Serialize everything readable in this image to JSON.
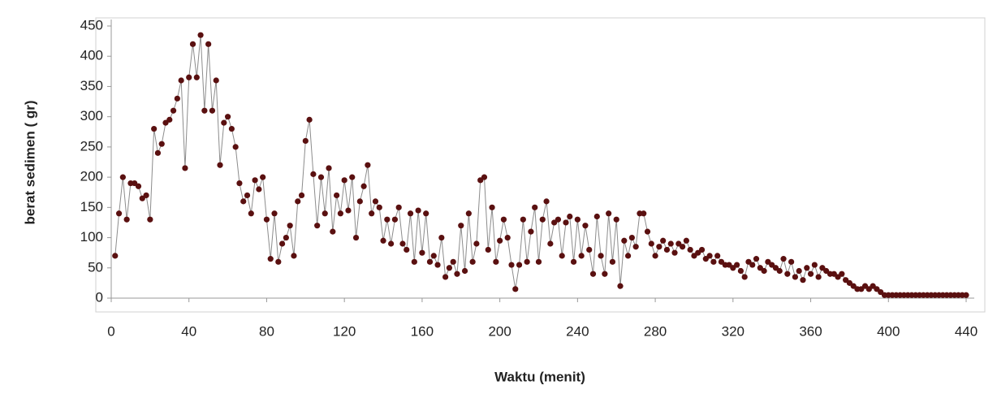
{
  "chart_data": {
    "type": "line",
    "xlabel": "Waktu (menit)",
    "ylabel": "berat sedimen ( gr)",
    "x": [
      2,
      4,
      6,
      8,
      10,
      12,
      14,
      16,
      18,
      20,
      22,
      24,
      26,
      28,
      30,
      32,
      34,
      36,
      38,
      40,
      42,
      44,
      46,
      48,
      50,
      52,
      54,
      56,
      58,
      60,
      62,
      64,
      66,
      68,
      70,
      72,
      74,
      76,
      78,
      80,
      82,
      84,
      86,
      88,
      90,
      92,
      94,
      96,
      98,
      100,
      102,
      104,
      106,
      108,
      110,
      112,
      114,
      116,
      118,
      120,
      122,
      124,
      126,
      128,
      130,
      132,
      134,
      136,
      138,
      140,
      142,
      144,
      146,
      148,
      150,
      152,
      154,
      156,
      158,
      160,
      162,
      164,
      166,
      168,
      170,
      172,
      174,
      176,
      178,
      180,
      182,
      184,
      186,
      188,
      190,
      192,
      194,
      196,
      198,
      200,
      202,
      204,
      206,
      208,
      210,
      212,
      214,
      216,
      218,
      220,
      222,
      224,
      226,
      228,
      230,
      232,
      234,
      236,
      238,
      240,
      242,
      244,
      246,
      248,
      250,
      252,
      254,
      256,
      258,
      260,
      262,
      264,
      266,
      268,
      270,
      272,
      274,
      276,
      278,
      280,
      282,
      284,
      286,
      288,
      290,
      292,
      294,
      296,
      298,
      300,
      302,
      304,
      306,
      308,
      310,
      312,
      314,
      316,
      318,
      320,
      322,
      324,
      326,
      328,
      330,
      332,
      334,
      336,
      338,
      340,
      342,
      344,
      346,
      348,
      350,
      352,
      354,
      356,
      358,
      360,
      362,
      364,
      366,
      368,
      370,
      372,
      374,
      376,
      378,
      380,
      382,
      384,
      386,
      388,
      390,
      392,
      394,
      396,
      398,
      400,
      402,
      404,
      406,
      408,
      410,
      412,
      414,
      416,
      418,
      420,
      422,
      424,
      426,
      428,
      430,
      432,
      434,
      436,
      438,
      440
    ],
    "series": [
      {
        "color": "#5a1010",
        "line_color": "#8c8c8c",
        "values": [
          70,
          140,
          200,
          130,
          190,
          190,
          185,
          165,
          170,
          130,
          280,
          240,
          255,
          290,
          295,
          310,
          330,
          360,
          215,
          365,
          420,
          365,
          435,
          310,
          420,
          310,
          360,
          220,
          290,
          300,
          280,
          250,
          190,
          160,
          170,
          140,
          195,
          180,
          200,
          130,
          65,
          140,
          60,
          90,
          100,
          120,
          70,
          160,
          170,
          260,
          295,
          205,
          120,
          200,
          140,
          215,
          110,
          170,
          140,
          195,
          145,
          200,
          100,
          160,
          185,
          220,
          140,
          160,
          150,
          95,
          130,
          90,
          130,
          150,
          90,
          80,
          140,
          60,
          145,
          75,
          140,
          60,
          70,
          55,
          100,
          35,
          50,
          60,
          40,
          120,
          45,
          140,
          60,
          90,
          195,
          200,
          80,
          150,
          60,
          95,
          130,
          100,
          55,
          15,
          55,
          130,
          60,
          110,
          150,
          60,
          130,
          160,
          90,
          125,
          130,
          70,
          125,
          135,
          60,
          130,
          70,
          120,
          80,
          40,
          135,
          70,
          40,
          140,
          60,
          130,
          20,
          95,
          70,
          100,
          85,
          140,
          140,
          110,
          90,
          70,
          85,
          95,
          80,
          90,
          75,
          90,
          85,
          95,
          80,
          70,
          75,
          80,
          65,
          70,
          60,
          70,
          60,
          55,
          55,
          50,
          55,
          45,
          35,
          60,
          55,
          65,
          50,
          45,
          60,
          55,
          50,
          45,
          65,
          40,
          60,
          35,
          45,
          30,
          50,
          40,
          55,
          35,
          50,
          45,
          40,
          40,
          35,
          40,
          30,
          25,
          20,
          15,
          15,
          20,
          15,
          20,
          15,
          10,
          5,
          5,
          5,
          5,
          5,
          5,
          5,
          5,
          5,
          5,
          5,
          5,
          5,
          5,
          5,
          5,
          5,
          5,
          5,
          5,
          5,
          5
        ]
      }
    ],
    "xlim": [
      0,
      440
    ],
    "xticks": [
      0,
      40,
      80,
      120,
      160,
      200,
      240,
      280,
      320,
      360,
      400,
      440
    ],
    "ylim": [
      0,
      450
    ],
    "yticks": [
      0,
      50,
      100,
      150,
      200,
      250,
      300,
      350,
      400,
      450
    ],
    "grid": false
  }
}
